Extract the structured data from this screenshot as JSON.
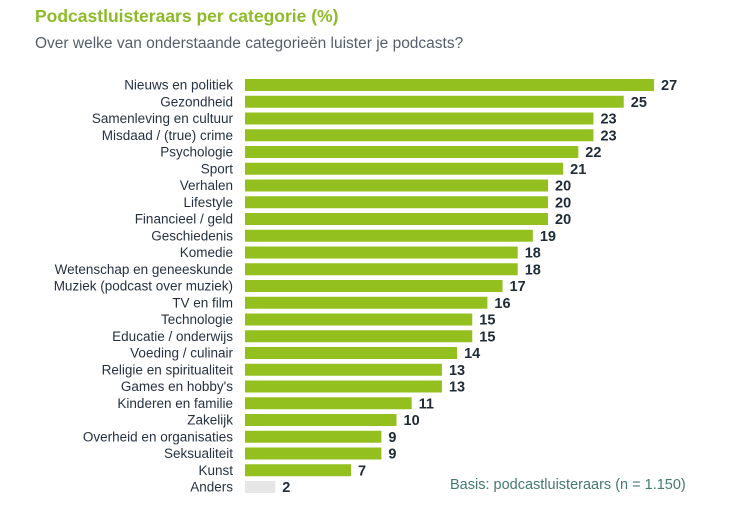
{
  "header": {
    "title": "Podcastluisteraars per categorie (%)",
    "subtitle": "Over welke van onderstaande categorieën luister je podcasts?"
  },
  "footnote": "Basis: podcastluisteraars (n = 1.150)",
  "colors": {
    "bar": "#93c01f",
    "bar_other": "#e6e6e6",
    "title": "#8dbb28"
  },
  "chart_data": {
    "type": "bar",
    "orientation": "horizontal",
    "title": "Podcastluisteraars per categorie (%)",
    "subtitle": "Over welke van onderstaande categorieën luister je podcasts?",
    "unit": "%",
    "categories": [
      "Nieuws en politiek",
      "Gezondheid",
      "Samenleving en cultuur",
      "Misdaad / (true) crime",
      "Psychologie",
      "Sport",
      "Verhalen",
      "Lifestyle",
      "Financieel / geld",
      "Geschiedenis",
      "Komedie",
      "Wetenschap en geneeskunde",
      "Muziek (podcast over muziek)",
      "TV en film",
      "Technologie",
      "Educatie / onderwijs",
      "Voeding / culinair",
      "Religie en spiritualiteit",
      "Games en hobby's",
      "Kinderen en familie",
      "Zakelijk",
      "Overheid en organisaties",
      "Seksualiteit",
      "Kunst",
      "Anders"
    ],
    "values": [
      27,
      25,
      23,
      23,
      22,
      21,
      20,
      20,
      20,
      19,
      18,
      18,
      17,
      16,
      15,
      15,
      14,
      13,
      13,
      11,
      10,
      9,
      9,
      7,
      2
    ],
    "value_labels": [
      "27",
      "25",
      "23",
      "23",
      "22",
      "21",
      "20",
      "20",
      "20",
      "19",
      "18",
      "18",
      "17",
      "16",
      "15",
      "15",
      "14",
      "13",
      "13",
      "11",
      "10",
      "9",
      "9",
      "7",
      "2"
    ],
    "grid": false,
    "legend": "none"
  }
}
